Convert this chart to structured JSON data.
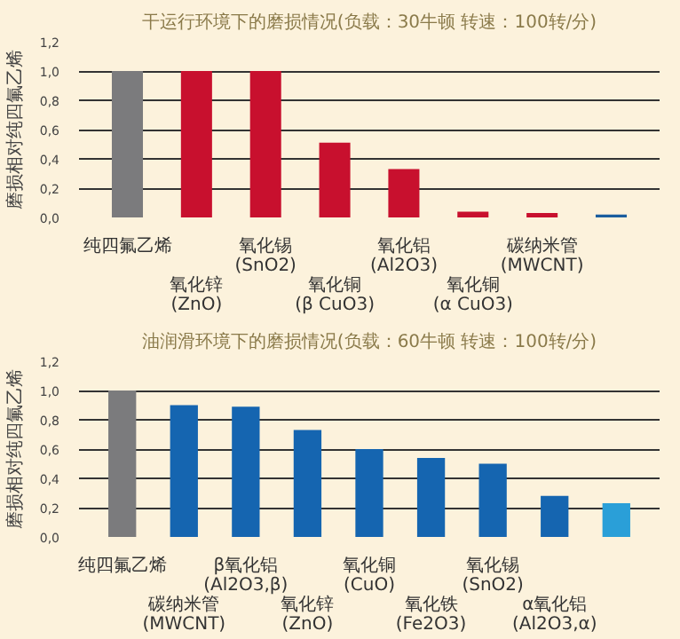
{
  "chart_data": [
    {
      "type": "bar",
      "title": "干运行环境下的磨损情况(负载：30牛顿 转速：100转/分)",
      "ylabel": "磨损相对纯四氟乙烯",
      "categories": [
        "纯四氟乙烯",
        "氧化锌(ZnO)",
        "氧化锡(SnO2)",
        "氧化铜(β CuO3)",
        "氧化铝(Al2O3)",
        "氧化铜(α CuO3)",
        "碳纳米管(MWCNT)",
        null
      ],
      "values": [
        1.0,
        1.0,
        1.0,
        0.51,
        0.33,
        0.04,
        0.03,
        0.02
      ],
      "colors": [
        "#7b7b7d",
        "#c8102e",
        "#c8102e",
        "#c8102e",
        "#c8102e",
        "#c8102e",
        "#c8102e",
        "#1b5e9e"
      ],
      "ylim": [
        0,
        1.2
      ],
      "yticks": [
        {
          "value": 0,
          "label": "0,0"
        },
        {
          "value": 0.2,
          "label": "0,2"
        },
        {
          "value": 0.4,
          "label": "0,4"
        },
        {
          "value": 0.6,
          "label": "0,6"
        },
        {
          "value": 0.8,
          "label": "0,8"
        },
        {
          "value": 1.0,
          "label": "1,0"
        },
        {
          "value": 1.2,
          "label": "1,2"
        }
      ],
      "grid": "y"
    },
    {
      "type": "bar",
      "title": "油润滑环境下的磨损情况(负载：60牛顿 转速：100转/分)",
      "ylabel": "磨损相对纯四氟乙烯",
      "categories": [
        "纯四氟乙烯",
        "碳纳米管(MWCNT)",
        "β氧化铝(Al2O3,β)",
        "氧化锌(ZnO)",
        "氧化铜(CuO)",
        "氧化铁(Fe2O3)",
        "氧化锡(SnO2)",
        "α氧化铝(Al2O3,α)",
        null
      ],
      "values": [
        1.0,
        0.9,
        0.89,
        0.73,
        0.6,
        0.54,
        0.5,
        0.28,
        0.23
      ],
      "colors": [
        "#7b7b7d",
        "#1565b0",
        "#1565b0",
        "#1565b0",
        "#1565b0",
        "#1565b0",
        "#1565b0",
        "#1565b0",
        "#2a9fd8"
      ],
      "ylim": [
        0,
        1.2
      ],
      "yticks": [
        {
          "value": 0,
          "label": "0,0"
        },
        {
          "value": 0.2,
          "label": "0,2"
        },
        {
          "value": 0.4,
          "label": "0,4"
        },
        {
          "value": 0.6,
          "label": "0,6"
        },
        {
          "value": 0.8,
          "label": "0,8"
        },
        {
          "value": 1.0,
          "label": "1,0"
        },
        {
          "value": 1.2,
          "label": "1,2"
        }
      ],
      "grid": "y"
    }
  ]
}
